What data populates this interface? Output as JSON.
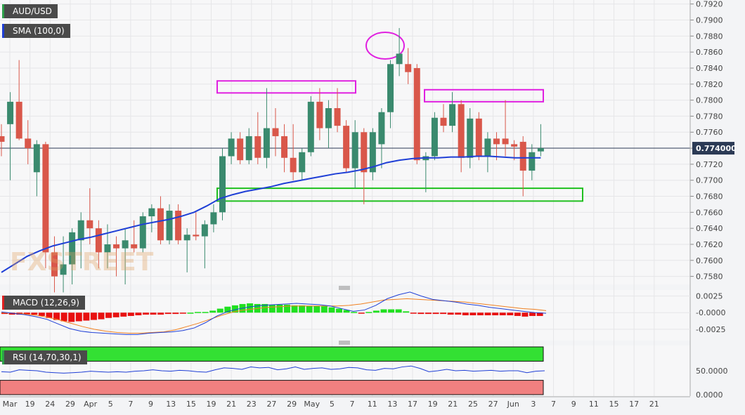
{
  "chart_data": {
    "type": "candlestick",
    "symbol": "AUD/USD",
    "current_price": "0.774000",
    "price_axis": {
      "ticks": [
        "0.7920",
        "0.7900",
        "0.7880",
        "0.7860",
        "0.7840",
        "0.7820",
        "0.7800",
        "0.7780",
        "0.7760",
        "0.7740",
        "0.7720",
        "0.7700",
        "0.7680",
        "0.7660",
        "0.7640",
        "0.7620",
        "0.7600",
        "0.7580"
      ],
      "range": [
        0.757,
        0.7925
      ]
    },
    "x_axis": {
      "labels": [
        "Mar",
        "19",
        "24",
        "29",
        "Apr",
        "5",
        "7",
        "9",
        "13",
        "15",
        "19",
        "21",
        "23",
        "27",
        "29",
        "May",
        "5",
        "7",
        "11",
        "13",
        "17",
        "19",
        "21",
        "25",
        "27",
        "Jun",
        "3",
        "7",
        "9",
        "11",
        "15",
        "17",
        "21"
      ]
    },
    "candles": [
      {
        "o": 0.7755,
        "h": 0.777,
        "l": 0.773,
        "c": 0.7748
      },
      {
        "o": 0.777,
        "h": 0.781,
        "l": 0.77,
        "c": 0.7798
      },
      {
        "o": 0.7798,
        "h": 0.785,
        "l": 0.775,
        "c": 0.7752
      },
      {
        "o": 0.7752,
        "h": 0.7775,
        "l": 0.772,
        "c": 0.774
      },
      {
        "o": 0.771,
        "h": 0.775,
        "l": 0.768,
        "c": 0.7745
      },
      {
        "o": 0.7745,
        "h": 0.7748,
        "l": 0.759,
        "c": 0.761
      },
      {
        "o": 0.761,
        "h": 0.763,
        "l": 0.756,
        "c": 0.758
      },
      {
        "o": 0.7582,
        "h": 0.763,
        "l": 0.756,
        "c": 0.7595
      },
      {
        "o": 0.7595,
        "h": 0.764,
        "l": 0.757,
        "c": 0.7635
      },
      {
        "o": 0.7625,
        "h": 0.766,
        "l": 0.759,
        "c": 0.765
      },
      {
        "o": 0.765,
        "h": 0.769,
        "l": 0.762,
        "c": 0.764
      },
      {
        "o": 0.764,
        "h": 0.765,
        "l": 0.759,
        "c": 0.761
      },
      {
        "o": 0.761,
        "h": 0.7645,
        "l": 0.759,
        "c": 0.762
      },
      {
        "o": 0.762,
        "h": 0.763,
        "l": 0.758,
        "c": 0.7615
      },
      {
        "o": 0.7615,
        "h": 0.764,
        "l": 0.757,
        "c": 0.7625
      },
      {
        "o": 0.762,
        "h": 0.765,
        "l": 0.761,
        "c": 0.7615
      },
      {
        "o": 0.7615,
        "h": 0.766,
        "l": 0.761,
        "c": 0.7655
      },
      {
        "o": 0.7655,
        "h": 0.767,
        "l": 0.7635,
        "c": 0.7665
      },
      {
        "o": 0.7665,
        "h": 0.768,
        "l": 0.762,
        "c": 0.7625
      },
      {
        "o": 0.7625,
        "h": 0.767,
        "l": 0.762,
        "c": 0.7662
      },
      {
        "o": 0.7662,
        "h": 0.767,
        "l": 0.762,
        "c": 0.7625
      },
      {
        "o": 0.7625,
        "h": 0.764,
        "l": 0.7585,
        "c": 0.7632
      },
      {
        "o": 0.7632,
        "h": 0.766,
        "l": 0.7625,
        "c": 0.763
      },
      {
        "o": 0.763,
        "h": 0.765,
        "l": 0.759,
        "c": 0.7645
      },
      {
        "o": 0.7645,
        "h": 0.767,
        "l": 0.7635,
        "c": 0.766
      },
      {
        "o": 0.766,
        "h": 0.774,
        "l": 0.765,
        "c": 0.773
      },
      {
        "o": 0.773,
        "h": 0.776,
        "l": 0.772,
        "c": 0.7752
      },
      {
        "o": 0.7752,
        "h": 0.776,
        "l": 0.772,
        "c": 0.7725
      },
      {
        "o": 0.7725,
        "h": 0.7765,
        "l": 0.772,
        "c": 0.7755
      },
      {
        "o": 0.7755,
        "h": 0.7785,
        "l": 0.772,
        "c": 0.7728
      },
      {
        "o": 0.7728,
        "h": 0.7815,
        "l": 0.7715,
        "c": 0.7765
      },
      {
        "o": 0.7765,
        "h": 0.779,
        "l": 0.773,
        "c": 0.7755
      },
      {
        "o": 0.7755,
        "h": 0.777,
        "l": 0.771,
        "c": 0.7728
      },
      {
        "o": 0.7728,
        "h": 0.777,
        "l": 0.77,
        "c": 0.771
      },
      {
        "o": 0.771,
        "h": 0.774,
        "l": 0.77,
        "c": 0.7735
      },
      {
        "o": 0.7735,
        "h": 0.7805,
        "l": 0.773,
        "c": 0.7798
      },
      {
        "o": 0.7798,
        "h": 0.7815,
        "l": 0.775,
        "c": 0.7765
      },
      {
        "o": 0.7765,
        "h": 0.78,
        "l": 0.774,
        "c": 0.779
      },
      {
        "o": 0.779,
        "h": 0.7815,
        "l": 0.776,
        "c": 0.7768
      },
      {
        "o": 0.7768,
        "h": 0.7775,
        "l": 0.771,
        "c": 0.7715
      },
      {
        "o": 0.7715,
        "h": 0.7775,
        "l": 0.769,
        "c": 0.776
      },
      {
        "o": 0.776,
        "h": 0.7765,
        "l": 0.767,
        "c": 0.771
      },
      {
        "o": 0.771,
        "h": 0.7765,
        "l": 0.77,
        "c": 0.776
      },
      {
        "o": 0.7745,
        "h": 0.779,
        "l": 0.7715,
        "c": 0.7785
      },
      {
        "o": 0.7785,
        "h": 0.785,
        "l": 0.7765,
        "c": 0.7845
      },
      {
        "o": 0.7845,
        "h": 0.789,
        "l": 0.783,
        "c": 0.7858
      },
      {
        "o": 0.7845,
        "h": 0.7865,
        "l": 0.782,
        "c": 0.7835
      },
      {
        "o": 0.784,
        "h": 0.7845,
        "l": 0.772,
        "c": 0.7725
      },
      {
        "o": 0.7725,
        "h": 0.7735,
        "l": 0.7685,
        "c": 0.773
      },
      {
        "o": 0.773,
        "h": 0.7785,
        "l": 0.7725,
        "c": 0.7778
      },
      {
        "o": 0.7778,
        "h": 0.7795,
        "l": 0.776,
        "c": 0.7768
      },
      {
        "o": 0.7768,
        "h": 0.781,
        "l": 0.776,
        "c": 0.7795
      },
      {
        "o": 0.7795,
        "h": 0.78,
        "l": 0.771,
        "c": 0.7728
      },
      {
        "o": 0.7728,
        "h": 0.779,
        "l": 0.7715,
        "c": 0.7777
      },
      {
        "o": 0.7777,
        "h": 0.7785,
        "l": 0.7725,
        "c": 0.773
      },
      {
        "o": 0.773,
        "h": 0.776,
        "l": 0.771,
        "c": 0.7752
      },
      {
        "o": 0.7752,
        "h": 0.776,
        "l": 0.7725,
        "c": 0.7745
      },
      {
        "o": 0.7752,
        "h": 0.78,
        "l": 0.773,
        "c": 0.7745
      },
      {
        "o": 0.7745,
        "h": 0.775,
        "l": 0.7725,
        "c": 0.7742
      },
      {
        "o": 0.7748,
        "h": 0.7755,
        "l": 0.768,
        "c": 0.7712
      },
      {
        "o": 0.7712,
        "h": 0.7745,
        "l": 0.77,
        "c": 0.7735
      },
      {
        "o": 0.7736,
        "h": 0.777,
        "l": 0.773,
        "c": 0.774
      }
    ],
    "sma": [
      0.7585,
      0.7595,
      0.7605,
      0.7612,
      0.7618,
      0.7622,
      0.7626,
      0.7629,
      0.7633,
      0.7637,
      0.7641,
      0.7645,
      0.7648,
      0.7651,
      0.7655,
      0.766,
      0.7668,
      0.7677,
      0.7682,
      0.7686,
      0.7689,
      0.7692,
      0.7696,
      0.7699,
      0.7702,
      0.7705,
      0.7708,
      0.771,
      0.7713,
      0.7717,
      0.7722,
      0.7725,
      0.7727,
      0.7728,
      0.7728,
      0.7729,
      0.7729,
      0.773,
      0.773,
      0.7729,
      0.7728,
      0.7728,
      0.7728
    ],
    "annotations": [
      {
        "type": "rect",
        "color": "#e020e0",
        "x0": 0.7815,
        "label": "resistance"
      },
      {
        "type": "rect",
        "color": "#e020e0",
        "label": "resistance-2"
      },
      {
        "type": "rect",
        "color": "#20c020",
        "label": "support"
      },
      {
        "type": "ellipse",
        "color": "#e020e0",
        "label": "peak"
      }
    ],
    "macd": {
      "ticks": [
        "0.0025",
        "-0.0000",
        "-0.0025"
      ],
      "histogram": [
        -0.0002,
        -0.0003,
        -0.0003,
        -0.0003,
        -0.0003,
        -0.0005,
        -0.0008,
        -0.0011,
        -0.0013,
        -0.0014,
        -0.0013,
        -0.0012,
        -0.0011,
        -0.001,
        -0.0008,
        -0.0007,
        -0.0006,
        -0.0005,
        -0.0004,
        -0.0003,
        -0.0003,
        -0.0003,
        -0.0002,
        -0.0002,
        -0.0001,
        0.0,
        0.0001,
        0.0001,
        0.0003,
        0.0006,
        0.0009,
        0.0011,
        0.0013,
        0.0014,
        0.0013,
        0.0013,
        0.0012,
        0.0012,
        0.0012,
        0.0011,
        0.0011,
        0.001,
        0.001,
        0.001,
        0.0008,
        0.0006,
        0.0004,
        0.0001,
        -0.0001,
        0.0001,
        0.0003,
        0.0005,
        0.0005,
        0.0005,
        0.0002,
        -0.0001,
        -0.0002,
        -0.0002,
        -0.0002,
        -0.0002,
        -0.0003,
        -0.0003,
        -0.0004,
        -0.0004,
        -0.0004,
        -0.0004,
        -0.0004,
        -0.0004,
        -0.0004,
        -0.0005,
        -0.0006,
        -0.0005,
        -0.0005
      ],
      "macd_line": [
        0.0001,
        -0.0001,
        -0.0003,
        -0.0006,
        -0.001,
        -0.0017,
        -0.0024,
        -0.0028,
        -0.003,
        -0.0031,
        -0.0032,
        -0.0033,
        -0.0033,
        -0.0031,
        -0.003,
        -0.0029,
        -0.0027,
        -0.0023,
        -0.0015,
        -0.0005,
        0.0002,
        0.0006,
        0.0009,
        0.0011,
        0.0012,
        0.0013,
        0.0014,
        0.0013,
        0.0012,
        0.001,
        0.0006,
        0.0002,
        0.0004,
        0.0011,
        0.0021,
        0.0027,
        0.0031,
        0.0025,
        0.002,
        0.0018,
        0.0016,
        0.0013,
        0.0011,
        0.0008,
        0.0006,
        0.0004,
        0.0002,
        0.0,
        -0.0001
      ],
      "signal_line": [
        0.0,
        -0.0001,
        -0.0002,
        -0.0004,
        -0.0007,
        -0.0011,
        -0.0016,
        -0.0021,
        -0.0025,
        -0.0028,
        -0.003,
        -0.0031,
        -0.0031,
        -0.003,
        -0.0029,
        -0.0026,
        -0.0021,
        -0.0016,
        -0.001,
        -0.0004,
        0.0001,
        0.0004,
        0.0006,
        0.0008,
        0.0009,
        0.001,
        0.001,
        0.001,
        0.001,
        0.001,
        0.0011,
        0.0013,
        0.0016,
        0.0019,
        0.002,
        0.0021,
        0.002,
        0.0019,
        0.0018,
        0.0017,
        0.0016,
        0.0014,
        0.0012,
        0.001,
        0.0008,
        0.0006,
        0.0005,
        0.0003
      ]
    },
    "rsi": {
      "ticks": [
        "50.0000",
        "0.0000"
      ],
      "range": [
        0,
        100
      ],
      "overbought": 70,
      "oversold": 30,
      "values": [
        48,
        47,
        52,
        51,
        50,
        47,
        46,
        45,
        46,
        47,
        49,
        48,
        47,
        48,
        47,
        49,
        50,
        52,
        50,
        49,
        51,
        50,
        48,
        47,
        52,
        56,
        55,
        53,
        58,
        56,
        57,
        52,
        54,
        58,
        53,
        55,
        56,
        53,
        54,
        57,
        56,
        52,
        51,
        55,
        54,
        58,
        60,
        55,
        48,
        50,
        53,
        50,
        51,
        49,
        50,
        51,
        49,
        50,
        50,
        46,
        49,
        50
      ]
    },
    "legend": {
      "series_label": "AUD/USD",
      "sma_label": "SMA (100,0)",
      "macd_label": "MACD (12,26,9)",
      "rsi_label": "RSI (14,70,30,1)"
    },
    "colors": {
      "up": "#3a8a6e",
      "down": "#d9574a",
      "sma": "#1f3fd6",
      "macd_line": "#1f3fd6",
      "signal_line": "#f08020",
      "hist_up": "#20e020",
      "hist_down": "#e81010",
      "rsi_line": "#1f3fd6",
      "rsi_top": "#33e033",
      "rsi_bottom": "#f08080"
    },
    "watermark": "FXSTREET"
  }
}
